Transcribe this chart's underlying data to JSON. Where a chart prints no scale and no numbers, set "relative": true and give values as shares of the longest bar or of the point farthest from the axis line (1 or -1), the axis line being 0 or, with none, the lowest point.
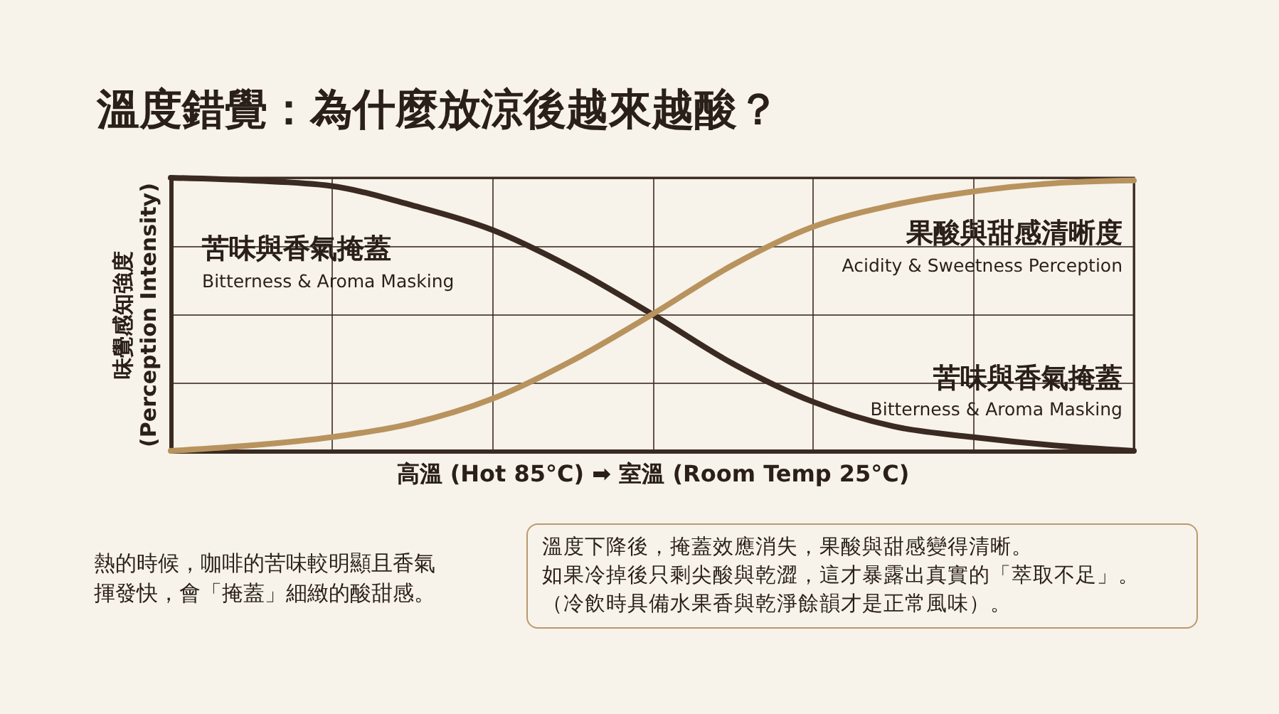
{
  "chart_data": {
    "type": "line",
    "title": "溫度錯覺：為什麼放涼後越來越酸？",
    "xlabel": "高溫 (Hot 85°C) ➡ 室溫 (Room Temp 25°C)",
    "ylabel": "味覺感知強度\n(Perception Intensity)",
    "relative": true,
    "grid": true,
    "marker": "none",
    "line_style": "solid",
    "tick_labels": false,
    "categories": [
      null,
      null,
      null,
      null,
      null,
      null,
      null,
      null,
      null,
      null,
      null,
      null,
      null
    ],
    "series": [
      {
        "name": "苦味與香氣掩蓋",
        "color": "#3b2a21",
        "values": [
          1,
          0.99,
          0.97,
          0.9,
          0.81,
          0.67,
          0.5,
          0.32,
          0.18,
          0.09,
          0.05,
          0.02,
          0
        ]
      },
      {
        "name": "果酸與甜感清晰度",
        "color": "#b8935e",
        "values": [
          0,
          0.02,
          0.05,
          0.1,
          0.19,
          0.33,
          0.5,
          0.68,
          0.82,
          0.9,
          0.95,
          0.98,
          0.99
        ]
      }
    ],
    "annotations": [
      "苦味與香氣掩蓋",
      "Bitterness & Aroma Masking",
      "Acidity & Sweetness Perception",
      "Bitterness & Aroma Masking",
      "熱的時候，咖啡的苦味較明顯且香氣",
      "揮發快，會「掩蓋」細緻的酸甜感。",
      "溫度下降後，掩蓋效應消失，果酸與甜感變得清晰。",
      "如果冷掉後只剩尖酸與乾澀，這才暴露出真實的「萃取不足」。",
      "（冷飲時具備水果香與乾淨餘韻才是正常風味）。"
    ]
  }
}
